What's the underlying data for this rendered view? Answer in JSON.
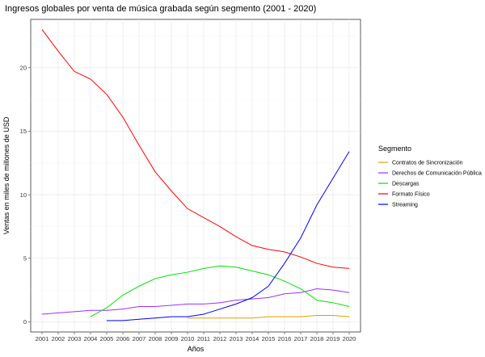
{
  "chart_data": {
    "type": "line",
    "title": "Ingresos globales por venta de música grabada según segmento (2001 - 2020)",
    "xlabel": "Años",
    "ylabel": "Ventas en miles de millones de USD",
    "x": [
      2001,
      2002,
      2003,
      2004,
      2005,
      2006,
      2007,
      2008,
      2009,
      2010,
      2011,
      2012,
      2013,
      2014,
      2015,
      2016,
      2017,
      2018,
      2019,
      2020
    ],
    "xlim": [
      2000.3,
      2020.7
    ],
    "ylim": [
      -0.8,
      23.8
    ],
    "y_ticks": [
      0,
      5,
      10,
      15,
      20
    ],
    "grid": true,
    "legend_title": "Segmento",
    "legend_position": "right",
    "series": [
      {
        "name": "Contratos de Sincronización",
        "color": "#e69f00",
        "x": [
          2010,
          2011,
          2012,
          2013,
          2014,
          2015,
          2016,
          2017,
          2018,
          2019,
          2020
        ],
        "values": [
          0.3,
          0.3,
          0.3,
          0.3,
          0.3,
          0.4,
          0.4,
          0.4,
          0.5,
          0.5,
          0.4
        ]
      },
      {
        "name": "Derechos de Comunicación Pública",
        "color": "#9b30ff",
        "x": [
          2001,
          2002,
          2003,
          2004,
          2005,
          2006,
          2007,
          2008,
          2009,
          2010,
          2011,
          2012,
          2013,
          2014,
          2015,
          2016,
          2017,
          2018,
          2019,
          2020
        ],
        "values": [
          0.6,
          0.7,
          0.8,
          0.9,
          0.9,
          1.0,
          1.2,
          1.2,
          1.3,
          1.4,
          1.4,
          1.5,
          1.7,
          1.8,
          1.9,
          2.2,
          2.3,
          2.6,
          2.5,
          2.3
        ]
      },
      {
        "name": "Descargas",
        "color": "#00e000",
        "x": [
          2004,
          2005,
          2006,
          2007,
          2008,
          2009,
          2010,
          2011,
          2012,
          2013,
          2014,
          2015,
          2016,
          2017,
          2018,
          2019,
          2020
        ],
        "values": [
          0.4,
          1.1,
          2.1,
          2.8,
          3.4,
          3.7,
          3.9,
          4.2,
          4.4,
          4.3,
          4.0,
          3.7,
          3.2,
          2.6,
          1.7,
          1.5,
          1.2
        ]
      },
      {
        "name": "Formato Físico",
        "color": "#ff0000",
        "x": [
          2001,
          2002,
          2003,
          2004,
          2005,
          2006,
          2007,
          2008,
          2009,
          2010,
          2011,
          2012,
          2013,
          2014,
          2015,
          2016,
          2017,
          2018,
          2019,
          2020
        ],
        "values": [
          23.0,
          21.3,
          19.7,
          19.1,
          17.9,
          16.1,
          13.9,
          11.8,
          10.3,
          8.9,
          8.2,
          7.5,
          6.7,
          6.0,
          5.7,
          5.5,
          5.1,
          4.6,
          4.3,
          4.2
        ]
      },
      {
        "name": "Streaming",
        "color": "#0000ff",
        "x": [
          2005,
          2006,
          2007,
          2008,
          2009,
          2010,
          2011,
          2012,
          2013,
          2014,
          2015,
          2016,
          2017,
          2018,
          2019,
          2020
        ],
        "values": [
          0.1,
          0.1,
          0.2,
          0.3,
          0.4,
          0.4,
          0.6,
          1.0,
          1.4,
          1.9,
          2.8,
          4.6,
          6.6,
          9.2,
          11.3,
          13.4
        ]
      }
    ]
  }
}
